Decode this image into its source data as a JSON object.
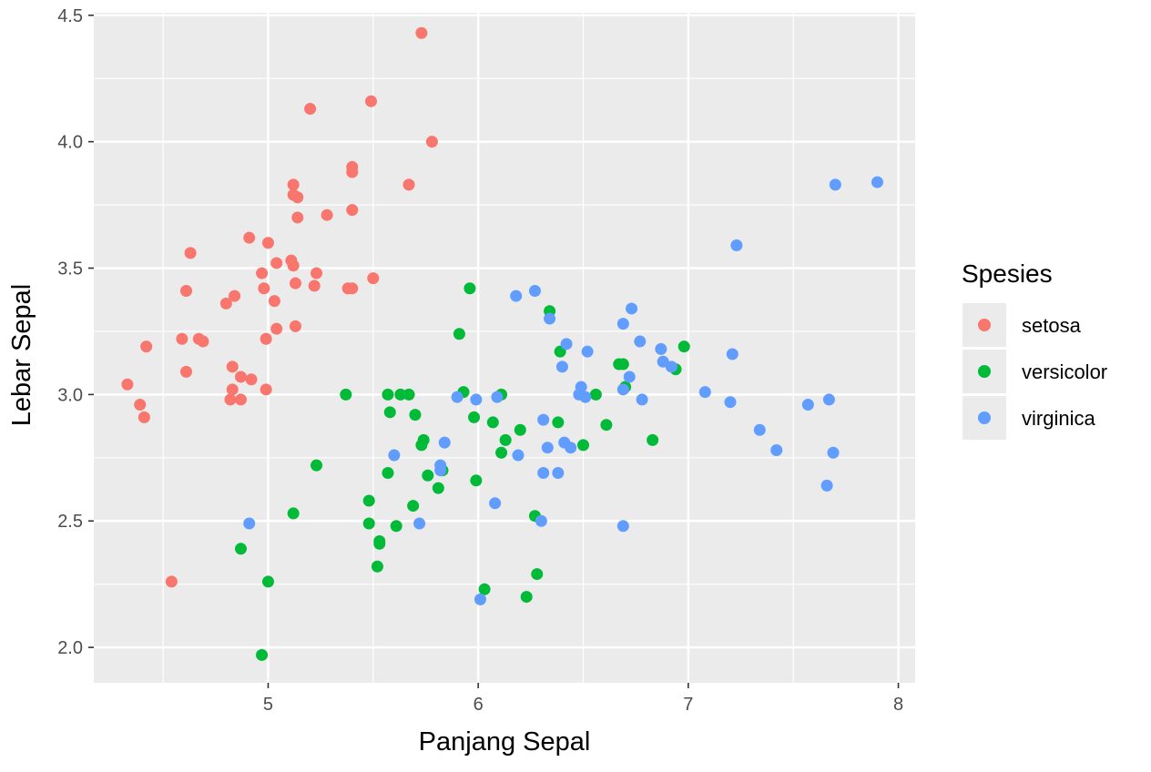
{
  "chart_data": {
    "type": "scatter",
    "title": "",
    "xlabel": "Panjang Sepal",
    "ylabel": "Lebar Sepal",
    "xlim": [
      4.17,
      8.08
    ],
    "ylim": [
      1.86,
      4.51
    ],
    "xticks": [
      5,
      6,
      7,
      8
    ],
    "xtick_labels": [
      "5",
      "6",
      "7",
      "8"
    ],
    "yticks": [
      2.0,
      2.5,
      3.0,
      3.5,
      4.0,
      4.5
    ],
    "ytick_labels": [
      "2.0",
      "2.5",
      "3.0",
      "3.5",
      "4.0",
      "4.5"
    ],
    "grid": true,
    "legend": {
      "title": "Spesies",
      "position": "right"
    },
    "series": [
      {
        "name": "setosa",
        "color": "#F8766D",
        "points": [
          [
            5.73,
            4.43
          ],
          [
            5.2,
            4.13
          ],
          [
            5.49,
            4.16
          ],
          [
            5.78,
            4.0
          ],
          [
            5.67,
            3.83
          ],
          [
            5.4,
            3.9
          ],
          [
            5.4,
            3.88
          ],
          [
            5.12,
            3.83
          ],
          [
            5.12,
            3.79
          ],
          [
            5.14,
            3.78
          ],
          [
            5.4,
            3.73
          ],
          [
            5.14,
            3.7
          ],
          [
            5.28,
            3.71
          ],
          [
            4.91,
            3.62
          ],
          [
            5.0,
            3.6
          ],
          [
            4.63,
            3.56
          ],
          [
            5.04,
            3.52
          ],
          [
            5.11,
            3.53
          ],
          [
            5.12,
            3.51
          ],
          [
            5.23,
            3.48
          ],
          [
            4.97,
            3.48
          ],
          [
            5.5,
            3.46
          ],
          [
            5.13,
            3.44
          ],
          [
            5.22,
            3.43
          ],
          [
            5.38,
            3.42
          ],
          [
            5.4,
            3.42
          ],
          [
            4.98,
            3.42
          ],
          [
            4.61,
            3.41
          ],
          [
            4.84,
            3.39
          ],
          [
            5.03,
            3.37
          ],
          [
            4.8,
            3.36
          ],
          [
            5.04,
            3.26
          ],
          [
            5.13,
            3.27
          ],
          [
            4.59,
            3.22
          ],
          [
            4.67,
            3.22
          ],
          [
            4.99,
            3.22
          ],
          [
            4.69,
            3.21
          ],
          [
            4.42,
            3.19
          ],
          [
            4.83,
            3.11
          ],
          [
            4.61,
            3.09
          ],
          [
            4.87,
            3.07
          ],
          [
            4.92,
            3.06
          ],
          [
            4.33,
            3.04
          ],
          [
            4.83,
            3.02
          ],
          [
            4.99,
            3.02
          ],
          [
            4.82,
            2.98
          ],
          [
            4.87,
            2.98
          ],
          [
            4.39,
            2.96
          ],
          [
            4.41,
            2.91
          ],
          [
            4.54,
            2.26
          ]
        ]
      },
      {
        "name": "versicolor",
        "color": "#00BA38",
        "points": [
          [
            5.96,
            3.42
          ],
          [
            6.34,
            3.33
          ],
          [
            5.91,
            3.24
          ],
          [
            6.98,
            3.19
          ],
          [
            6.39,
            3.17
          ],
          [
            6.67,
            3.12
          ],
          [
            6.69,
            3.12
          ],
          [
            6.94,
            3.1
          ],
          [
            6.7,
            3.03
          ],
          [
            5.37,
            3.0
          ],
          [
            5.57,
            3.0
          ],
          [
            5.63,
            3.0
          ],
          [
            5.67,
            3.0
          ],
          [
            5.93,
            3.01
          ],
          [
            6.11,
            3.0
          ],
          [
            6.56,
            3.0
          ],
          [
            5.58,
            2.93
          ],
          [
            5.7,
            2.92
          ],
          [
            5.98,
            2.91
          ],
          [
            6.07,
            2.89
          ],
          [
            6.38,
            2.89
          ],
          [
            6.61,
            2.88
          ],
          [
            6.2,
            2.86
          ],
          [
            6.13,
            2.82
          ],
          [
            6.83,
            2.82
          ],
          [
            5.74,
            2.82
          ],
          [
            5.73,
            2.8
          ],
          [
            6.5,
            2.8
          ],
          [
            6.11,
            2.77
          ],
          [
            5.23,
            2.72
          ],
          [
            5.83,
            2.7
          ],
          [
            5.57,
            2.69
          ],
          [
            5.76,
            2.68
          ],
          [
            5.99,
            2.66
          ],
          [
            5.81,
            2.63
          ],
          [
            5.48,
            2.58
          ],
          [
            5.69,
            2.56
          ],
          [
            5.12,
            2.53
          ],
          [
            6.27,
            2.52
          ],
          [
            5.48,
            2.49
          ],
          [
            5.61,
            2.48
          ],
          [
            5.53,
            2.42
          ],
          [
            5.53,
            2.41
          ],
          [
            4.87,
            2.39
          ],
          [
            5.52,
            2.32
          ],
          [
            6.28,
            2.29
          ],
          [
            5.0,
            2.26
          ],
          [
            6.03,
            2.23
          ],
          [
            6.23,
            2.2
          ],
          [
            4.97,
            1.97
          ]
        ]
      },
      {
        "name": "virginica",
        "color": "#619CFF",
        "points": [
          [
            7.9,
            3.84
          ],
          [
            7.7,
            3.83
          ],
          [
            7.23,
            3.59
          ],
          [
            6.27,
            3.41
          ],
          [
            6.18,
            3.39
          ],
          [
            6.73,
            3.34
          ],
          [
            6.34,
            3.3
          ],
          [
            6.69,
            3.28
          ],
          [
            6.77,
            3.21
          ],
          [
            6.42,
            3.2
          ],
          [
            6.52,
            3.17
          ],
          [
            6.87,
            3.18
          ],
          [
            7.21,
            3.16
          ],
          [
            6.88,
            3.13
          ],
          [
            6.92,
            3.11
          ],
          [
            6.4,
            3.11
          ],
          [
            6.72,
            3.07
          ],
          [
            6.49,
            3.03
          ],
          [
            6.69,
            3.02
          ],
          [
            7.08,
            3.01
          ],
          [
            6.09,
            2.99
          ],
          [
            6.48,
            3.0
          ],
          [
            6.51,
            2.99
          ],
          [
            5.9,
            2.99
          ],
          [
            5.99,
            2.98
          ],
          [
            6.78,
            2.98
          ],
          [
            7.2,
            2.97
          ],
          [
            7.67,
            2.98
          ],
          [
            7.57,
            2.96
          ],
          [
            6.31,
            2.9
          ],
          [
            7.34,
            2.86
          ],
          [
            5.84,
            2.81
          ],
          [
            6.41,
            2.81
          ],
          [
            6.44,
            2.79
          ],
          [
            6.33,
            2.79
          ],
          [
            7.42,
            2.78
          ],
          [
            7.69,
            2.77
          ],
          [
            6.19,
            2.76
          ],
          [
            5.6,
            2.76
          ],
          [
            5.82,
            2.72
          ],
          [
            5.82,
            2.7
          ],
          [
            6.31,
            2.69
          ],
          [
            6.38,
            2.69
          ],
          [
            7.66,
            2.64
          ],
          [
            6.08,
            2.57
          ],
          [
            6.3,
            2.5
          ],
          [
            5.72,
            2.49
          ],
          [
            6.69,
            2.48
          ],
          [
            4.91,
            2.49
          ],
          [
            6.01,
            2.19
          ]
        ]
      }
    ]
  }
}
